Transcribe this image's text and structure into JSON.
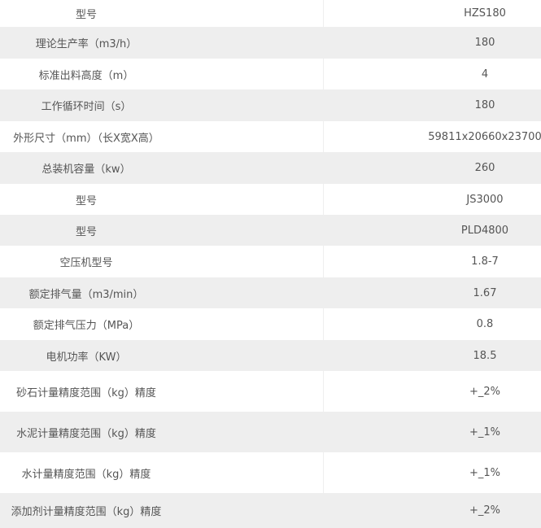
{
  "colors": {
    "row_alt": "#eeeeee",
    "row": "#ffffff",
    "text": "#555555"
  },
  "rows": [
    {
      "label": "型号",
      "value": "HZS180"
    },
    {
      "label": "理论生产率（m3/h）",
      "value": "180"
    },
    {
      "label": "标准出料高度（m）",
      "value": "4"
    },
    {
      "label": "工作循环时间（s）",
      "value": "180"
    },
    {
      "label": "外形尺寸（mm）（长X宽X高）",
      "value": "59811x20660x23700"
    },
    {
      "label": "总装机容量（kw）",
      "value": "260"
    },
    {
      "label": "型号",
      "value": "JS3000"
    },
    {
      "label": "型号",
      "value": "PLD4800"
    },
    {
      "label": "空压机型号",
      "value": "1.8-7"
    },
    {
      "label": "额定排气量（m3/min）",
      "value": "1.67"
    },
    {
      "label": "额定排气压力（MPa）",
      "value": "0.8"
    },
    {
      "label": "电机功率（KW）",
      "value": "18.5"
    },
    {
      "label": "砂石计量精度范围（kg）精度",
      "value": "+_2%"
    },
    {
      "label": "水泥计量精度范围（kg）精度",
      "value": "+_1%"
    },
    {
      "label": "水计量精度范围（kg）精度",
      "value": "+_1%"
    },
    {
      "label": "添加剂计量精度范围（kg）精度",
      "value": "+_2%"
    }
  ]
}
